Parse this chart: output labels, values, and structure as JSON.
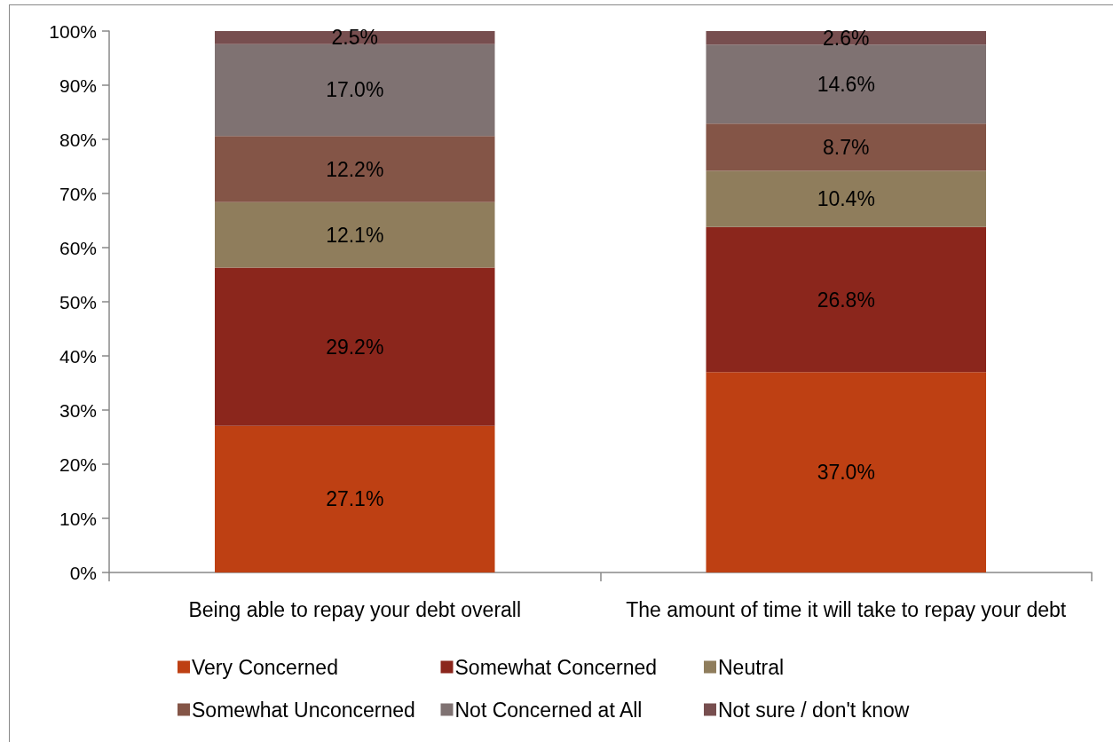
{
  "chart_data": {
    "type": "bar",
    "stacked": true,
    "categories": [
      "Being able to repay your debt overall",
      "The amount of time it will take to repay your debt"
    ],
    "series": [
      {
        "name": "Very Concerned",
        "color": "#be4013",
        "values": [
          27.1,
          37.0
        ],
        "value_labels": [
          "27.1%",
          "37.0%"
        ]
      },
      {
        "name": "Somewhat Concerned",
        "color": "#8b261c",
        "values": [
          29.2,
          26.8
        ],
        "value_labels": [
          "29.2%",
          "26.8%"
        ]
      },
      {
        "name": "Neutral",
        "color": "#8f7d5c",
        "values": [
          12.1,
          10.4
        ],
        "value_labels": [
          "12.1%",
          "10.4%"
        ]
      },
      {
        "name": "Somewhat Unconcerned",
        "color": "#845547",
        "values": [
          12.2,
          8.7
        ],
        "value_labels": [
          "12.2%",
          "8.7%"
        ]
      },
      {
        "name": "Not Concerned at All",
        "color": "#7f7272",
        "values": [
          17.0,
          14.6
        ],
        "value_labels": [
          "17.0%",
          "14.6%"
        ]
      },
      {
        "name": "Not sure / don't know",
        "color": "#774e4f",
        "values": [
          2.5,
          2.6
        ],
        "value_labels": [
          "2.5%",
          "2.6%"
        ]
      }
    ],
    "ylim": [
      0,
      100
    ],
    "yticks": [
      {
        "value": 0,
        "label": "0%"
      },
      {
        "value": 10,
        "label": "10%"
      },
      {
        "value": 20,
        "label": "20%"
      },
      {
        "value": 30,
        "label": "30%"
      },
      {
        "value": 40,
        "label": "40%"
      },
      {
        "value": 50,
        "label": "50%"
      },
      {
        "value": 60,
        "label": "60%"
      },
      {
        "value": 70,
        "label": "70%"
      },
      {
        "value": 80,
        "label": "80%"
      },
      {
        "value": 90,
        "label": "90%"
      },
      {
        "value": 100,
        "label": "100%"
      }
    ],
    "legend": "bottom"
  }
}
